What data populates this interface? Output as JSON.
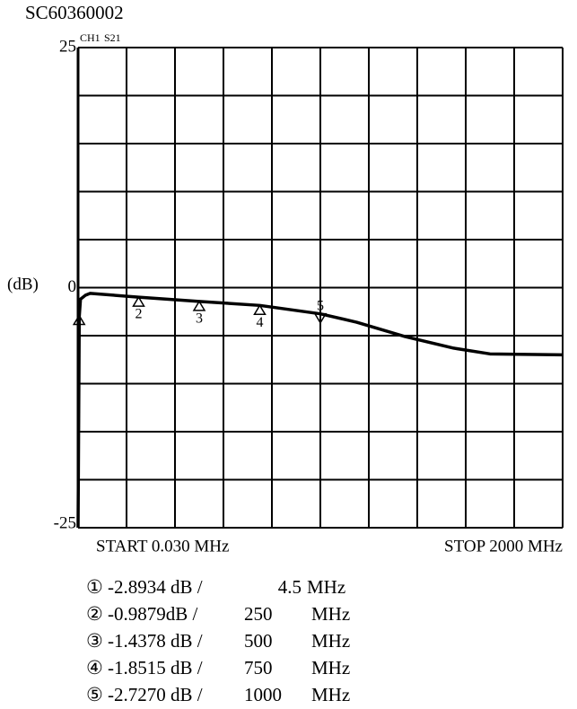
{
  "chart_data": {
    "type": "line",
    "title": "SC60360002",
    "channel": "CH1",
    "parameter": "S21",
    "y_label": "(dB)",
    "start_label": "START 0.030 MHz",
    "stop_label": "STOP 2000 MHz",
    "xlim": [
      0.03,
      2000
    ],
    "ylim": [
      -25,
      25
    ],
    "yticks": [
      -25,
      0,
      25
    ],
    "grid_divisions": 10,
    "color": "#000000",
    "x": [
      0.03,
      5,
      10,
      30,
      50,
      250,
      500,
      750,
      1000,
      1150,
      1350,
      1550,
      1700,
      2000
    ],
    "values": [
      -25,
      -3,
      -1.2,
      -0.8,
      -0.6,
      -0.9879,
      -1.4378,
      -1.8515,
      -2.727,
      -3.6,
      -5.1,
      -6.3,
      -6.9,
      -7.0
    ],
    "markers": [
      {
        "symbol": "①",
        "value": -2.8934,
        "value_label": "-2.8934 dB /",
        "x": 4.5,
        "unit": "MHz",
        "pointer": "up"
      },
      {
        "symbol": "②",
        "tag": "2",
        "value": -0.9879,
        "value_label": "-0.9879dB /",
        "x": 250,
        "unit": "MHz",
        "pointer": "up"
      },
      {
        "symbol": "③",
        "tag": "3",
        "value": -1.4378,
        "value_label": "-1.4378 dB /",
        "x": 500,
        "unit": "MHz",
        "pointer": "up"
      },
      {
        "symbol": "④",
        "tag": "4",
        "value": -1.8515,
        "value_label": "-1.8515 dB /",
        "x": 750,
        "unit": "MHz",
        "pointer": "up"
      },
      {
        "symbol": "⑤",
        "tag": "5",
        "value": -2.727,
        "value_label": "-2.7270 dB /",
        "x": 1000,
        "unit": "MHz",
        "pointer": "down"
      }
    ]
  }
}
